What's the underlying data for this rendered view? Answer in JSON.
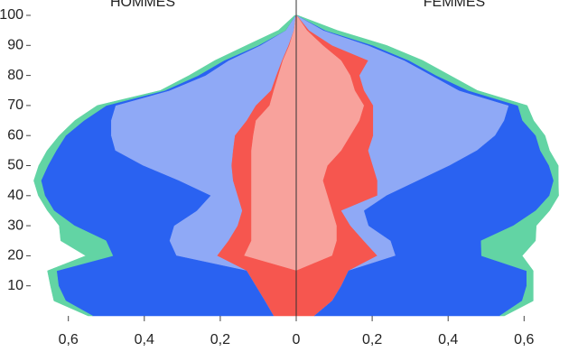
{
  "chart_data": {
    "type": "pyramid",
    "y": [
      0,
      5,
      10,
      15,
      20,
      25,
      30,
      35,
      40,
      45,
      50,
      55,
      60,
      65,
      70,
      75,
      80,
      85,
      90,
      95,
      100
    ],
    "ylim": [
      0,
      100
    ],
    "yticks": [
      10,
      20,
      30,
      40,
      50,
      60,
      70,
      80,
      90,
      100
    ],
    "xlim": [
      0,
      0.78
    ],
    "xticks": [
      0,
      {
        "value": 0.2,
        "label": "0,2"
      },
      {
        "value": 0.4,
        "label": "0,4"
      },
      {
        "value": 0.6,
        "label": "0,6"
      }
    ],
    "left": {
      "title": "HOMMES",
      "series": [
        {
          "color": "#f8a29c",
          "values": [
            0,
            0,
            0,
            0,
            0.138,
            0.119,
            0.119,
            0.119,
            0.119,
            0.119,
            0.119,
            0.119,
            0.114,
            0.107,
            0.071,
            0.06,
            0.048,
            0.036,
            0.019,
            0.007,
            0.002
          ]
        },
        {
          "color": "#f6564f",
          "values": [
            0.06,
            0.083,
            0.107,
            0.131,
            0.071,
            0.06,
            0.036,
            0.024,
            0.036,
            0.048,
            0.052,
            0.048,
            0.048,
            0.024,
            0.036,
            0.007,
            0.005,
            0.002,
            0.002,
            0,
            0
          ]
        },
        {
          "color": "#8fa9f6",
          "values": [
            0,
            0,
            0,
            0,
            0.107,
            0.155,
            0.167,
            0.119,
            0.071,
            0.143,
            0.233,
            0.31,
            0.326,
            0.357,
            0.369,
            0.267,
            0.186,
            0.14,
            0.074,
            0.021,
            0
          ]
        },
        {
          "color": "#2a62f1",
          "values": [
            0.476,
            0.524,
            0.519,
            0.5,
            0.167,
            0.167,
            0.262,
            0.376,
            0.436,
            0.362,
            0.25,
            0.155,
            0.119,
            0.071,
            0.024,
            0.012,
            0.019,
            0.012,
            0.005,
            0,
            0
          ]
        },
        {
          "color": "#62d4a4",
          "values": [
            0.012,
            0.031,
            0.021,
            0.024,
            0.071,
            0.119,
            0.04,
            0.017,
            0.017,
            0.019,
            0.024,
            0.024,
            0.017,
            0.024,
            0.024,
            0.012,
            0.024,
            0.024,
            0.031,
            0.019,
            0.002
          ]
        }
      ]
    },
    "right": {
      "title": "FEMMES",
      "series": [
        {
          "color": "#f8a29c",
          "values": [
            0,
            0,
            0,
            0,
            0.095,
            0.107,
            0.107,
            0.095,
            0.083,
            0.071,
            0.083,
            0.119,
            0.143,
            0.167,
            0.179,
            0.155,
            0.143,
            0.119,
            0.071,
            0.029,
            0.002
          ]
        },
        {
          "color": "#f6564f",
          "values": [
            0.048,
            0.095,
            0.119,
            0.138,
            0.119,
            0.071,
            0.036,
            0.024,
            0.131,
            0.143,
            0.119,
            0.071,
            0.06,
            0.036,
            0.024,
            0.024,
            0.024,
            0.071,
            0.024,
            0.005,
            0
          ]
        },
        {
          "color": "#8fa9f6",
          "values": [
            0,
            0,
            0,
            0,
            0.048,
            0.071,
            0.048,
            0.06,
            0.024,
            0.107,
            0.202,
            0.286,
            0.321,
            0.345,
            0.357,
            0.25,
            0.19,
            0.095,
            0.095,
            0.038,
            0
          ]
        },
        {
          "color": "#2a62f1",
          "values": [
            0.488,
            0.5,
            0.488,
            0.469,
            0.226,
            0.238,
            0.381,
            0.452,
            0.429,
            0.357,
            0.262,
            0.167,
            0.107,
            0.048,
            0.024,
            0.024,
            0.012,
            0.012,
            0.012,
            0.005,
            0
          ]
        },
        {
          "color": "#62d4a4",
          "values": [
            0.012,
            0.029,
            0.017,
            0.017,
            0.107,
            0.143,
            0.06,
            0.036,
            0.024,
            0.012,
            0.024,
            0.024,
            0.024,
            0.029,
            0.024,
            0.024,
            0.036,
            0.036,
            0.036,
            0.031,
            0.002
          ]
        }
      ]
    }
  }
}
